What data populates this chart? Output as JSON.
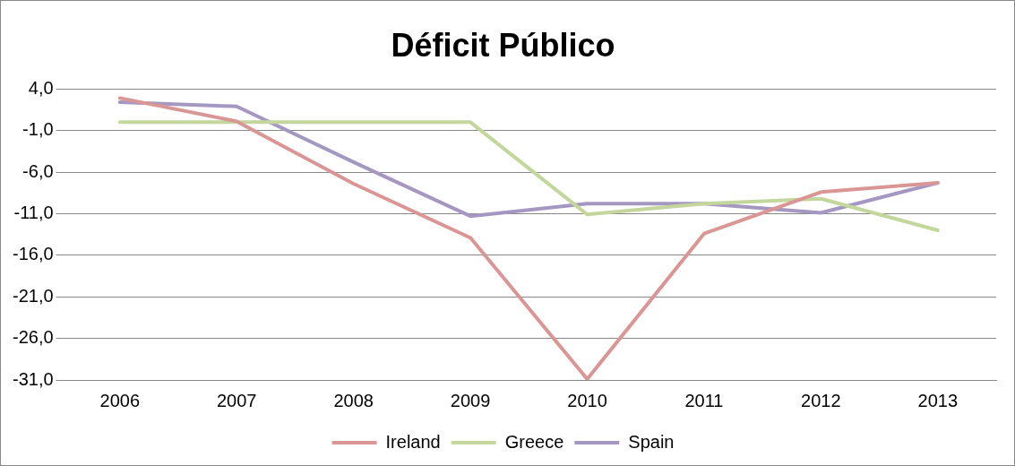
{
  "chart_data": {
    "type": "line",
    "title": "Déficit Público",
    "categories": [
      "2006",
      "2007",
      "2008",
      "2009",
      "2010",
      "2011",
      "2012",
      "2013"
    ],
    "series": [
      {
        "name": "Ireland",
        "color": "#d99694",
        "values": [
          2.9,
          0.1,
          -7.4,
          -13.9,
          -30.9,
          -13.4,
          -8.4,
          -7.3
        ]
      },
      {
        "name": "Greece",
        "color": "#c3d69b",
        "values": [
          0,
          0,
          0,
          0,
          -11.1,
          -9.8,
          -9.2,
          -13.0
        ]
      },
      {
        "name": "Spain",
        "color": "#a498c2",
        "values": [
          2.4,
          1.9,
          -4.8,
          -11.3,
          -9.8,
          -9.8,
          -10.9,
          -7.3
        ]
      }
    ],
    "ylim": [
      -31,
      4
    ],
    "yticks": [
      {
        "value": 4,
        "label": "4,0"
      },
      {
        "value": -1,
        "label": "-1,0"
      },
      {
        "value": -6,
        "label": "-6,0"
      },
      {
        "value": -11,
        "label": "-11,0"
      },
      {
        "value": -16,
        "label": "-16,0"
      },
      {
        "value": -21,
        "label": "-21,0"
      },
      {
        "value": -26,
        "label": "-26,0"
      },
      {
        "value": -31,
        "label": "-31,0"
      }
    ],
    "grid": "y",
    "legend": "bottom",
    "marker": "none",
    "line_style": "solid"
  }
}
